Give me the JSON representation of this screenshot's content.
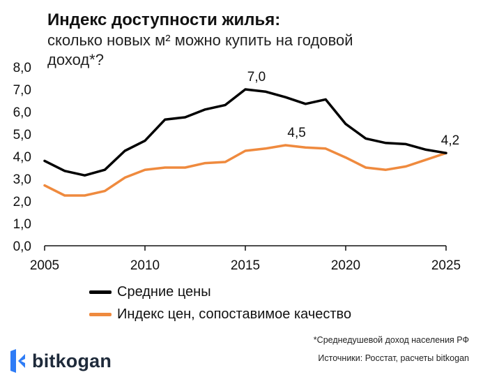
{
  "header": {
    "title": "Индекс доступности жилья:",
    "subtitle": "сколько новых м² можно купить на годовой доход*?"
  },
  "chart_data": {
    "type": "line",
    "x": [
      2005,
      2006,
      2007,
      2008,
      2009,
      2010,
      2011,
      2012,
      2013,
      2014,
      2015,
      2016,
      2017,
      2018,
      2019,
      2020,
      2021,
      2022,
      2023,
      2024,
      2025
    ],
    "x_ticks": [
      "2005",
      "2010",
      "2015",
      "2020",
      "2025"
    ],
    "y_ticks": [
      "0,0",
      "1,0",
      "2,0",
      "3,0",
      "4,0",
      "5,0",
      "6,0",
      "7,0",
      "8,0"
    ],
    "ylim": [
      0,
      8
    ],
    "grid": false,
    "legend_position": "bottom",
    "series": [
      {
        "name": "Средние цены",
        "color": "#000000",
        "values": [
          3.8,
          3.35,
          3.15,
          3.4,
          4.25,
          4.7,
          5.65,
          5.75,
          6.1,
          6.3,
          7.0,
          6.9,
          6.65,
          6.35,
          6.55,
          5.45,
          4.8,
          4.6,
          4.55,
          4.3,
          4.15
        ]
      },
      {
        "name": "Индекс цен, сопоставимое качество",
        "color": "#ef8a3e",
        "values": [
          2.7,
          2.25,
          2.25,
          2.45,
          3.05,
          3.4,
          3.5,
          3.5,
          3.7,
          3.75,
          4.25,
          4.35,
          4.5,
          4.4,
          4.35,
          3.95,
          3.5,
          3.4,
          3.55,
          3.85,
          4.15
        ]
      }
    ],
    "annotations": [
      {
        "text": "7,0",
        "x": 2015,
        "y": 7.0
      },
      {
        "text": "4,5",
        "x": 2017,
        "y": 4.5
      },
      {
        "text": "4,2",
        "x": 2025,
        "y": 4.15
      }
    ]
  },
  "footer": {
    "footnote": "*Среднедушевой доход населения РФ",
    "sources": "Источники: Росстат, расчеты bitkogan",
    "brand": "bitkogan",
    "brand_color": "#2e7cf6"
  }
}
